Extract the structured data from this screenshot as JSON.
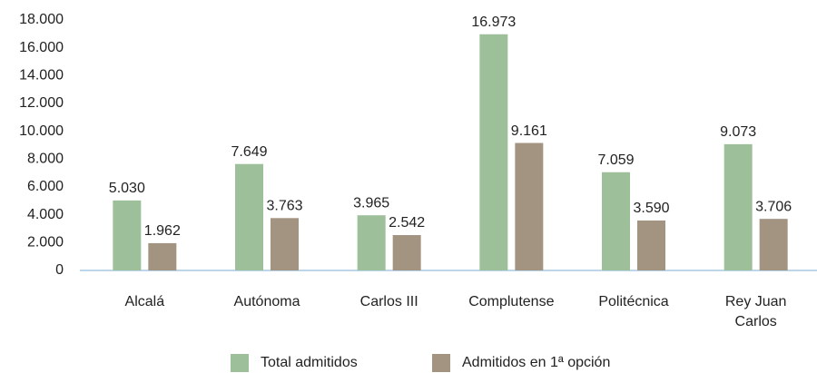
{
  "chart_data": {
    "type": "bar",
    "categories": [
      "Alcalá",
      "Autónoma",
      "Carlos III",
      "Complutense",
      "Politécnica",
      "Rey Juan Carlos"
    ],
    "series": [
      {
        "name": "Total admitidos",
        "color": "#9dc09a",
        "values": [
          5030,
          7649,
          3965,
          16973,
          7059,
          9073
        ],
        "value_labels": [
          "5.030",
          "7.649",
          "3.965",
          "16.973",
          "7.059",
          "9.073"
        ]
      },
      {
        "name": "Admitidos en 1ª opción",
        "color": "#a39482",
        "values": [
          1962,
          3763,
          2542,
          9161,
          3590,
          3706
        ],
        "value_labels": [
          "1.962",
          "3.763",
          "2.542",
          "9.161",
          "3.590",
          "3.706"
        ]
      }
    ],
    "ylim": [
      0,
      18000
    ],
    "yticks": [
      0,
      {
        "value": 2000,
        "label": "2.000"
      },
      {
        "value": 4000,
        "label": "4.000"
      },
      {
        "value": 6000,
        "label": "6.000"
      },
      {
        "value": 8000,
        "label": "8.000"
      },
      {
        "value": 10000,
        "label": "10.000"
      },
      {
        "value": 12000,
        "label": "12.000"
      },
      {
        "value": 14000,
        "label": "14.000"
      },
      {
        "value": 16000,
        "label": "16.000"
      },
      {
        "value": 18000,
        "label": "18.000"
      }
    ],
    "legend": "bottom"
  }
}
